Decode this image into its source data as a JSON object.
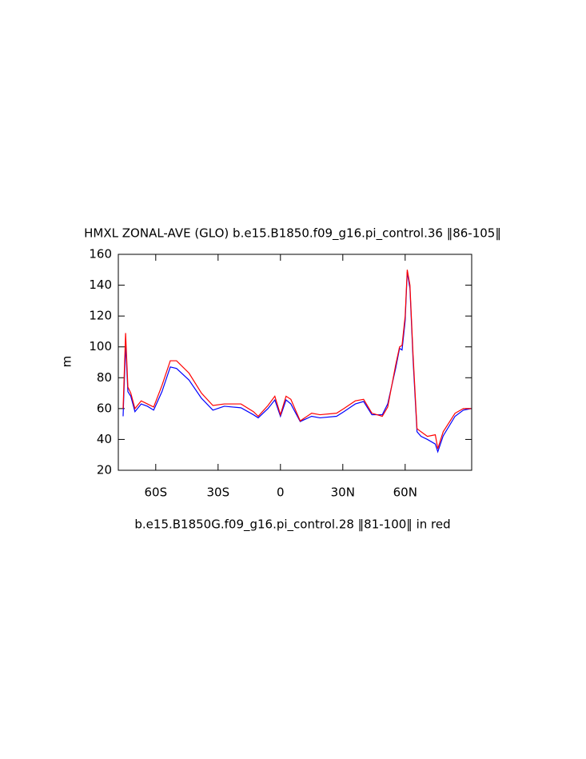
{
  "chart_data": {
    "type": "line",
    "title": "HMXL ZONAL-AVE (GLO) b.e15.B1850.f09_g16.pi_control.36 ‖86-105‖",
    "ylabel": "m",
    "annotation": "b.e15.B1850G.f09_g16.pi_control.28 ‖81-100‖ in red",
    "x": [
      -75.7,
      -74.5,
      -73.4,
      -72,
      -70,
      -67,
      -64,
      -61,
      -57,
      -53,
      -50,
      -44,
      -38,
      -32.5,
      -27,
      -19,
      -13,
      -10.7,
      -6,
      -2.7,
      0,
      2.7,
      5,
      9.5,
      15,
      19,
      27,
      30.5,
      36,
      40,
      44,
      49,
      51.6,
      55.4,
      57.3,
      58.5,
      60,
      61,
      62.3,
      63.8,
      65.7,
      67.6,
      70.7,
      74.5,
      75.7,
      78.3,
      84,
      88,
      91.7
    ],
    "series": [
      {
        "color": "#0000ff",
        "values": [
          55,
          102,
          71,
          68,
          58,
          63,
          61.5,
          59,
          71,
          87,
          86,
          78.5,
          66.7,
          59,
          61.5,
          60.5,
          56,
          54,
          60,
          65.6,
          55,
          65.6,
          63,
          51.6,
          55,
          54,
          55,
          58,
          63,
          64.6,
          56,
          56,
          63,
          86,
          99,
          98,
          117,
          148.6,
          138,
          91.6,
          45,
          42,
          40,
          37,
          32,
          42.3,
          55,
          59,
          60
        ]
      },
      {
        "color": "#ff0000",
        "values": [
          60,
          109,
          74,
          70,
          60,
          65,
          63,
          61,
          75,
          91,
          91,
          83,
          70,
          62,
          63,
          63,
          58,
          55,
          62,
          68,
          56,
          68,
          66,
          52,
          57,
          56,
          57,
          60,
          65,
          66,
          57,
          55,
          61,
          88,
          100,
          101,
          120,
          150,
          140,
          95,
          47,
          45,
          42,
          43,
          34,
          45,
          57,
          60,
          60
        ]
      }
    ],
    "xlim": [
      -78,
      92
    ],
    "xticks": [
      {
        "value": -60,
        "label": "60S"
      },
      {
        "value": -30,
        "label": "30S"
      },
      0,
      {
        "value": 30,
        "label": "30N"
      },
      {
        "value": 60,
        "label": "60N"
      }
    ],
    "ylim": [
      20,
      160
    ],
    "yticks": [
      20,
      40,
      60,
      80,
      100,
      120,
      140,
      160
    ],
    "grid": false
  }
}
